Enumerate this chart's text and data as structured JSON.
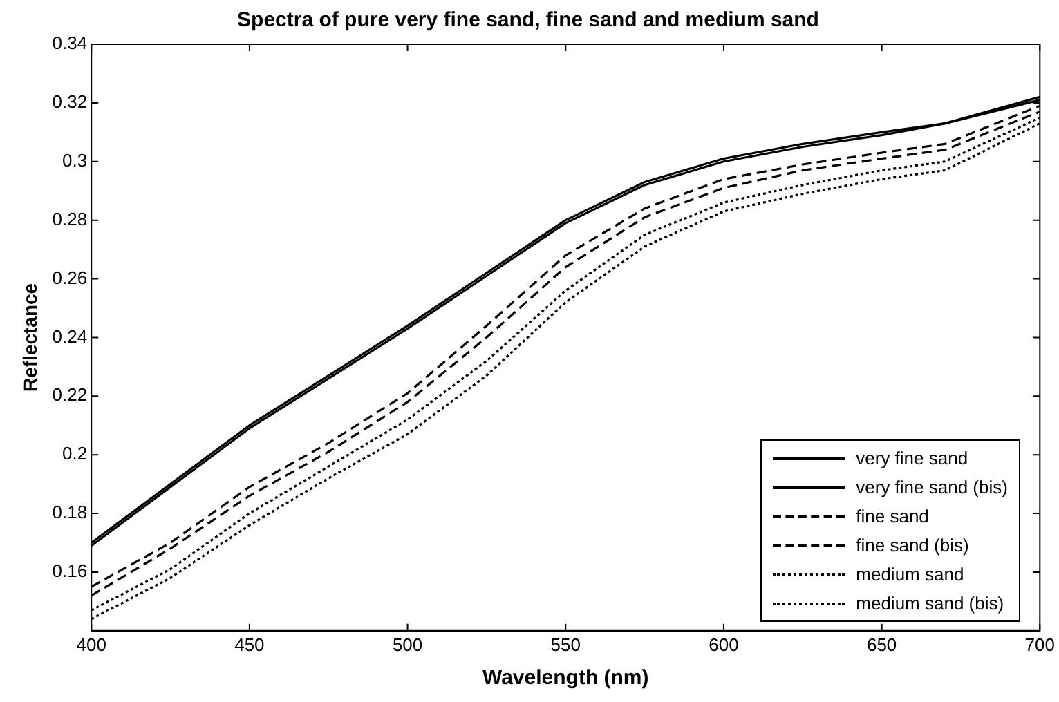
{
  "chart_data": {
    "type": "line",
    "title": "Spectra of pure very fine sand, fine sand and medium sand",
    "xlabel": "Wavelength (nm)",
    "ylabel": "Reflectance",
    "x": [
      400,
      425,
      450,
      475,
      500,
      525,
      550,
      575,
      600,
      625,
      650,
      670,
      700
    ],
    "xlim": [
      400,
      700
    ],
    "xticks": [
      400,
      450,
      500,
      550,
      600,
      650,
      700
    ],
    "ylim": [
      0.14,
      0.34
    ],
    "yticks": [
      0.16,
      0.18,
      0.2,
      0.22,
      0.24,
      0.26,
      0.28,
      0.3,
      0.32,
      0.34
    ],
    "grid": false,
    "legend": "bottom right",
    "marker": "none",
    "series": [
      {
        "name": "very fine sand",
        "color": "#000000",
        "line_style": "solid",
        "values": [
          0.169,
          0.189,
          0.209,
          0.226,
          0.243,
          0.261,
          0.279,
          0.292,
          0.3,
          0.305,
          0.309,
          0.313,
          0.322
        ]
      },
      {
        "name": "very fine sand (bis)",
        "color": "#000000",
        "line_style": "solid",
        "values": [
          0.17,
          0.19,
          0.21,
          0.227,
          0.244,
          0.262,
          0.28,
          0.293,
          0.301,
          0.306,
          0.31,
          0.313,
          0.321
        ]
      },
      {
        "name": "fine sand",
        "color": "#000000",
        "line_style": "dashed",
        "values": [
          0.155,
          0.17,
          0.189,
          0.204,
          0.221,
          0.244,
          0.268,
          0.284,
          0.294,
          0.299,
          0.303,
          0.306,
          0.319
        ]
      },
      {
        "name": "fine sand (bis)",
        "color": "#000000",
        "line_style": "dashed",
        "values": [
          0.152,
          0.168,
          0.186,
          0.201,
          0.218,
          0.24,
          0.264,
          0.281,
          0.291,
          0.297,
          0.301,
          0.304,
          0.317
        ]
      },
      {
        "name": "medium sand",
        "color": "#000000",
        "line_style": "dotted",
        "values": [
          0.147,
          0.161,
          0.18,
          0.196,
          0.212,
          0.232,
          0.256,
          0.275,
          0.286,
          0.292,
          0.297,
          0.3,
          0.315
        ]
      },
      {
        "name": "medium sand (bis)",
        "color": "#000000",
        "line_style": "dotted",
        "values": [
          0.144,
          0.158,
          0.176,
          0.192,
          0.207,
          0.227,
          0.252,
          0.271,
          0.283,
          0.289,
          0.294,
          0.297,
          0.313
        ]
      }
    ]
  }
}
